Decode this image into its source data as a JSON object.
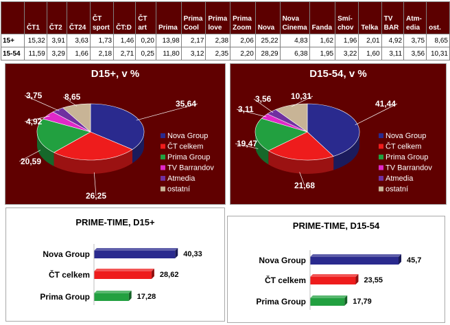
{
  "table": {
    "columns": [
      "",
      "ČT1",
      "ČT2",
      "ČT24",
      "ČT sport",
      "ČT:D",
      "ČT art",
      "Prima",
      "Prima Cool",
      "Prima love",
      "Prima Zoom",
      "Nova",
      "Nova Cinema",
      "Fanda",
      "Smí-chov",
      "Telka",
      "TV BAR",
      "Atm-edia",
      "ost."
    ],
    "rows": [
      {
        "label": "15+",
        "values": [
          "15,32",
          "3,91",
          "3,63",
          "1,73",
          "1,46",
          "0,20",
          "13,98",
          "2,17",
          "2,38",
          "2,06",
          "25,22",
          "4,83",
          "1,62",
          "1,96",
          "2,01",
          "4,92",
          "3,75",
          "8,65"
        ]
      },
      {
        "label": "15-54",
        "values": [
          "11,59",
          "3,29",
          "1,66",
          "2,18",
          "2,71",
          "0,25",
          "11,80",
          "3,12",
          "2,35",
          "2,20",
          "28,29",
          "6,38",
          "1,95",
          "3,22",
          "1,60",
          "3,11",
          "3,56",
          "10,31"
        ]
      }
    ]
  },
  "chart_data": [
    {
      "type": "pie",
      "title": "D15+, v %",
      "categories": [
        "Nova Group",
        "ČT celkem",
        "Prima Group",
        "TV Barrandov",
        "Atmedia",
        "ostatní"
      ],
      "values": [
        35.64,
        26.25,
        20.59,
        4.92,
        3.75,
        8.65
      ],
      "value_labels": [
        "35,64",
        "26,25",
        "20,59",
        "4,92",
        "3,75",
        "8,65"
      ],
      "colors": [
        "#2a2a8e",
        "#ee1c1c",
        "#22a040",
        "#e028c8",
        "#7030a0",
        "#c8b496"
      ],
      "legend": "right"
    },
    {
      "type": "pie",
      "title": "D15-54, v %",
      "categories": [
        "Nova Group",
        "ČT celkem",
        "Prima Group",
        "TV Barrandov",
        "Atmedia",
        "ostatní"
      ],
      "values": [
        41.44,
        21.68,
        19.47,
        3.11,
        3.56,
        10.31
      ],
      "value_labels": [
        "41,44",
        "21,68",
        "19,47",
        "3,11",
        "3,56",
        "10,31"
      ],
      "colors": [
        "#2a2a8e",
        "#ee1c1c",
        "#22a040",
        "#e028c8",
        "#7030a0",
        "#c8b496"
      ],
      "legend": "right"
    },
    {
      "type": "bar",
      "orientation": "horizontal",
      "title": "PRIME-TIME, D15+",
      "categories": [
        "Nova Group",
        "ČT celkem",
        "Prima Group"
      ],
      "values": [
        40.33,
        28.62,
        17.28
      ],
      "value_labels": [
        "40,33",
        "28,62",
        "17,28"
      ],
      "colors": [
        "#2a2a8e",
        "#ee1c1c",
        "#22a040"
      ],
      "xlim": [
        0,
        45.7
      ]
    },
    {
      "type": "bar",
      "orientation": "horizontal",
      "title": "PRIME-TIME, D15-54",
      "categories": [
        "Nova Group",
        "ČT celkem",
        "Prima Group"
      ],
      "values": [
        45.7,
        23.55,
        17.79
      ],
      "value_labels": [
        "45,7",
        "23,55",
        "17,79"
      ],
      "colors": [
        "#2a2a8e",
        "#ee1c1c",
        "#22a040"
      ],
      "xlim": [
        0,
        45.7
      ]
    }
  ]
}
